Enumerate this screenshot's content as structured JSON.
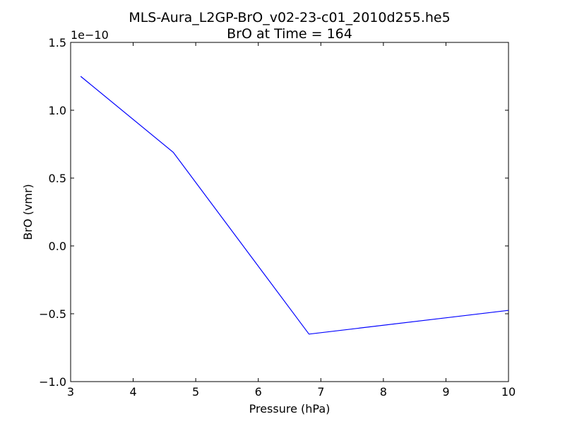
{
  "chart_data": {
    "type": "line",
    "title": "MLS-Aura_L2GP-BrO_v02-23-c01_2010d255.he5",
    "subtitle": "BrO at Time = 164",
    "xlabel": "Pressure (hPa)",
    "ylabel": "BrO (vmr)",
    "y_offset_label": "1e−10",
    "xlim": [
      3,
      10
    ],
    "ylim": [
      -1.0,
      1.5
    ],
    "x_ticks": [
      3,
      4,
      5,
      6,
      7,
      8,
      9,
      10
    ],
    "x_tick_labels": [
      "3",
      "4",
      "5",
      "6",
      "7",
      "8",
      "9",
      "10"
    ],
    "y_ticks": [
      -1.0,
      -0.5,
      0.0,
      0.5,
      1.0,
      1.5
    ],
    "y_tick_labels": [
      "−1.0",
      "−0.5",
      "0.0",
      "0.5",
      "1.0",
      "1.5"
    ],
    "grid": false,
    "series": [
      {
        "color": "#0000ff",
        "x": [
          3.16,
          4.64,
          6.81,
          10.0
        ],
        "y": [
          1.25,
          0.69,
          -0.65,
          -0.475
        ]
      }
    ]
  }
}
